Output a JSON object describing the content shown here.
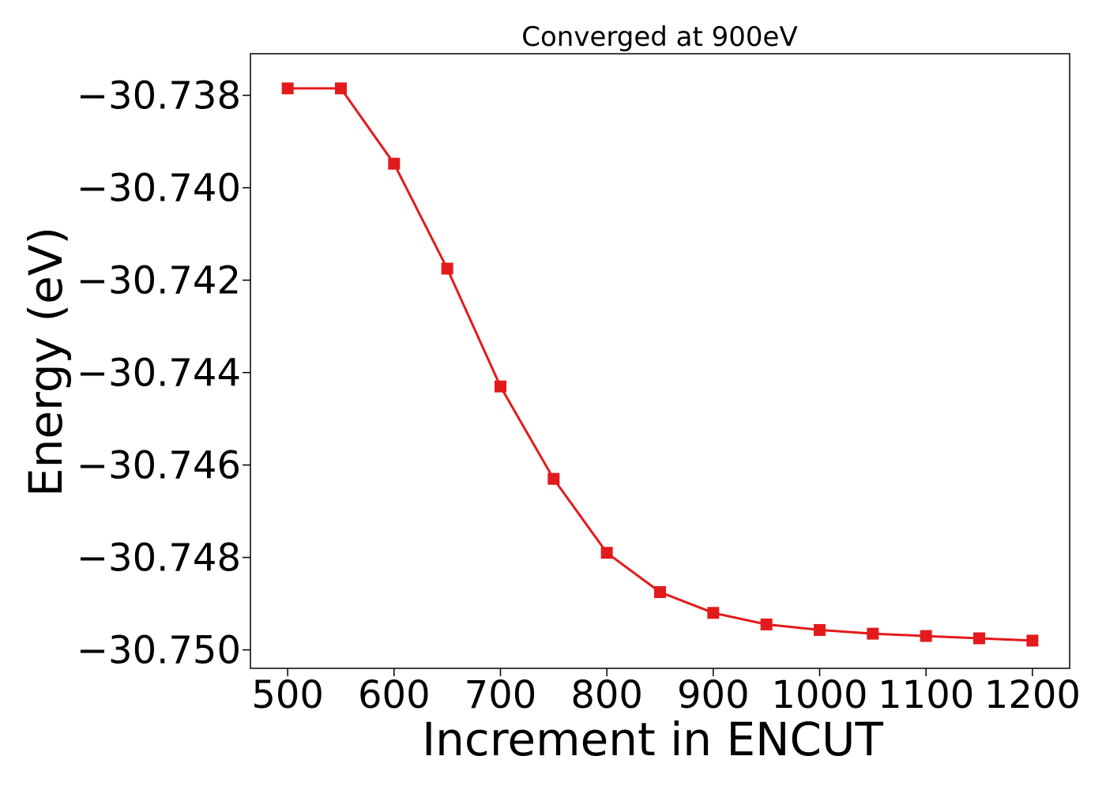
{
  "chart_data": {
    "type": "line",
    "title": "Converged at 900eV",
    "xlabel": "Increment in ENCUT",
    "ylabel": "Energy (eV)",
    "xlim": [
      465,
      1235
    ],
    "ylim": [
      -30.7504,
      -30.7371
    ],
    "x_ticks": [
      500,
      600,
      700,
      800,
      900,
      1000,
      1100,
      1200
    ],
    "y_ticks": [
      -30.738,
      -30.74,
      -30.742,
      -30.744,
      -30.746,
      -30.748,
      -30.75
    ],
    "y_tick_labels": [
      "−30.738",
      "−30.740",
      "−30.742",
      "−30.744",
      "−30.746",
      "−30.748",
      "−30.750"
    ],
    "grid": false,
    "marker": "square",
    "colors": {
      "series": "#e31a1c",
      "axes": "#000000"
    },
    "series": [
      {
        "x": [
          500,
          550,
          600,
          650,
          700,
          750,
          800,
          850,
          900,
          950,
          1000,
          1050,
          1100,
          1150,
          1200
        ],
        "y": [
          -30.73785,
          -30.73785,
          -30.73948,
          -30.74175,
          -30.7443,
          -30.7463,
          -30.7479,
          -30.74875,
          -30.7492,
          -30.74945,
          -30.74957,
          -30.74965,
          -30.7497,
          -30.74975,
          -30.7498
        ]
      }
    ]
  }
}
